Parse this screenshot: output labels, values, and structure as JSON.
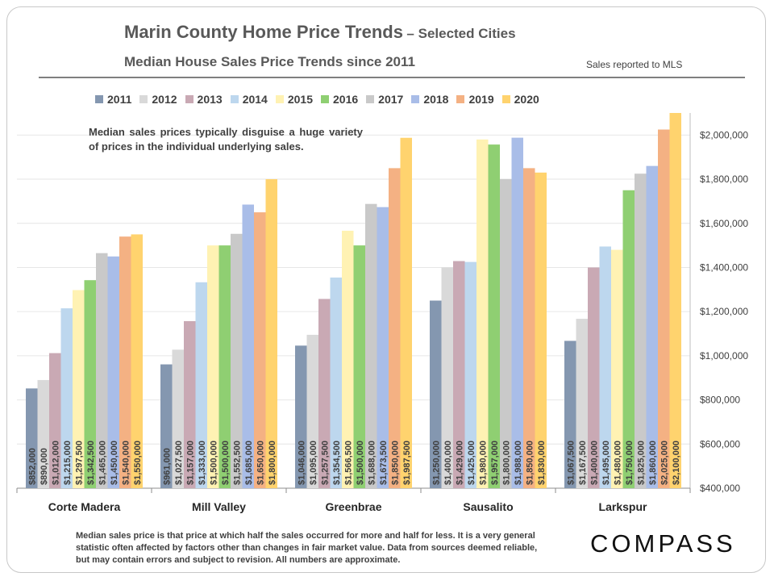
{
  "header": {
    "title_main": "Marin County Home Price Trends",
    "title_suffix": "– Selected Cities",
    "subtitle": "Median House Sales Price Trends since 2011",
    "note": "Sales reported to MLS"
  },
  "annotation": "Median sales prices typically disguise a huge variety of prices in the individual underlying sales.",
  "footnote": "Median sales price is that price at which half the sales occurred for more and half for less. It is a very general statistic often affected by factors other than changes in fair market value. Data from sources deemed reliable, but may contain errors and subject to revision. All numbers are approximate.",
  "logo": "COMPASS",
  "chart_data": {
    "type": "bar",
    "title": "Median House Sales Price Trends since 2011",
    "categories": [
      "Corte Madera",
      "Mill Valley",
      "Greenbrae",
      "Sausalito",
      "Larkspur"
    ],
    "ylim": [
      400000,
      2100000
    ],
    "yticks": [
      400000,
      600000,
      800000,
      1000000,
      1200000,
      1400000,
      1600000,
      1800000,
      2000000
    ],
    "ytick_labels": [
      "$400,000",
      "$600,000",
      "$800,000",
      "$1,000,000",
      "$1,200,000",
      "$1,400,000",
      "$1,600,000",
      "$1,800,000",
      "$2,000,000"
    ],
    "y_axis_position": "right",
    "grid": true,
    "legend_position": "top",
    "series": [
      {
        "name": "2011",
        "color": "#8497b0",
        "values": [
          852000,
          961000,
          1046000,
          1250000,
          1067500
        ],
        "labels": [
          "$852,000",
          "$961,000",
          "$1,046,000",
          "$1,250,000",
          "$1,067,500"
        ]
      },
      {
        "name": "2012",
        "color": "#d9d9d9",
        "values": [
          890000,
          1027500,
          1095000,
          1400000,
          1167500
        ],
        "labels": [
          "$890,000",
          "$1,027,500",
          "$1,095,000",
          "$1,400,000",
          "$1,167,500"
        ]
      },
      {
        "name": "2013",
        "color": "#c9a9b4",
        "values": [
          1012000,
          1157000,
          1257500,
          1429000,
          1400000
        ],
        "labels": [
          "$1,012,000",
          "$1,157,000",
          "$1,257,500",
          "$1,429,000",
          "$1,400,000"
        ]
      },
      {
        "name": "2014",
        "color": "#bdd7ee",
        "values": [
          1215000,
          1333000,
          1354500,
          1425000,
          1495000
        ],
        "labels": [
          "$1,215,000",
          "$1,333,000",
          "$1,354,500",
          "$1,425,000",
          "$1,495,000"
        ]
      },
      {
        "name": "2015",
        "color": "#fff2b3",
        "values": [
          1297500,
          1500000,
          1566500,
          1980000,
          1480000
        ],
        "labels": [
          "$1,297,500",
          "$1,500,000",
          "$1,566,500",
          "$1,980,000",
          "$1,480,000"
        ]
      },
      {
        "name": "2016",
        "color": "#8fcf72",
        "values": [
          1342500,
          1500000,
          1500000,
          1957000,
          1750000
        ],
        "labels": [
          "$1,342,500",
          "$1,500,000",
          "$1,500,000",
          "$1,957,000",
          "$1,750,000"
        ]
      },
      {
        "name": "2017",
        "color": "#c9c9c9",
        "values": [
          1465000,
          1552500,
          1688000,
          1800000,
          1825000
        ],
        "labels": [
          "$1,465,000",
          "$1,552,500",
          "$1,688,000",
          "$1,800,000",
          "$1,825,000"
        ]
      },
      {
        "name": "2018",
        "color": "#a9bde8",
        "values": [
          1450000,
          1685000,
          1673500,
          1988000,
          1860000
        ],
        "labels": [
          "$1,450,000",
          "$1,685,000",
          "$1,673,500",
          "$1,988,000",
          "$1,860,000"
        ]
      },
      {
        "name": "2019",
        "color": "#f4b183",
        "values": [
          1540000,
          1650000,
          1850000,
          1850000,
          2025000
        ],
        "labels": [
          "$1,540,000",
          "$1,650,000",
          "$1,850,000",
          "$1,850,000",
          "$2,025,000"
        ]
      },
      {
        "name": "2020",
        "color": "#ffd36e",
        "values": [
          1550000,
          1800000,
          1987500,
          1830000,
          2100000
        ],
        "labels": [
          "$1,550,000",
          "$1,800,000",
          "$1,987,500",
          "$1,830,000",
          "$2,100,000"
        ]
      }
    ]
  }
}
